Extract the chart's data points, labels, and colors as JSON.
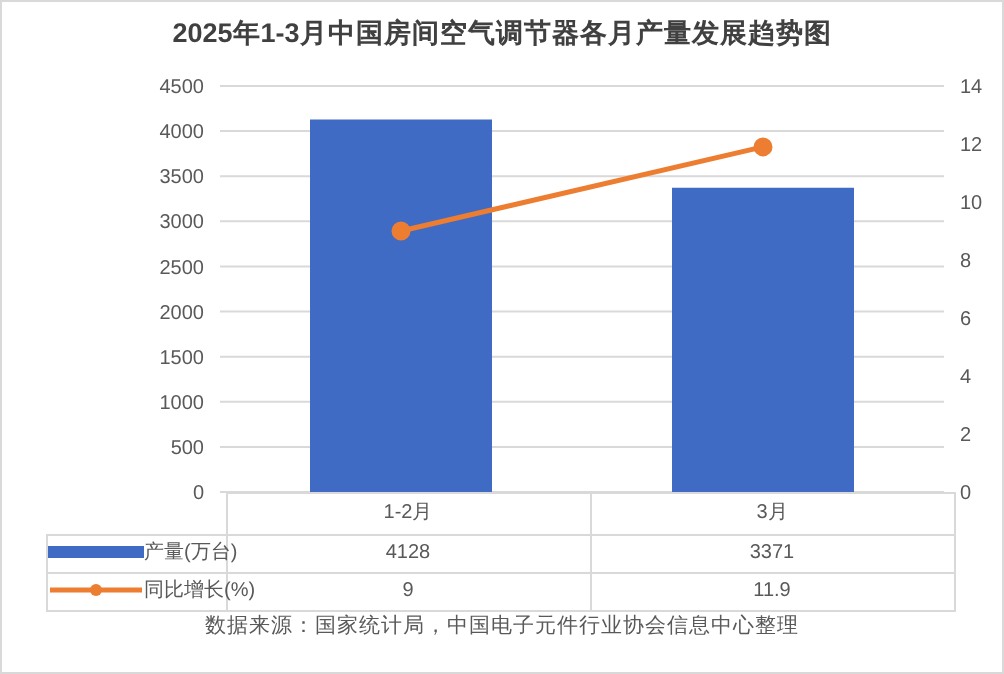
{
  "chart_data": {
    "type": "bar",
    "title": "2025年1-3月中国房间空气调节器各月产量发展趋势图",
    "categories": [
      "1-2月",
      "3月"
    ],
    "series": [
      {
        "name": "产量(万台)",
        "color": "#3f6bc4",
        "values": [
          4128,
          3371
        ]
      },
      {
        "name": "同比增长(%)",
        "type": "line",
        "axis": "y2",
        "color": "#ed7d31",
        "values": [
          9,
          11.9
        ]
      }
    ],
    "ylim": [
      0,
      4500
    ],
    "yticks": [
      0,
      500,
      1000,
      1500,
      2000,
      2500,
      3000,
      3500,
      4000,
      4500
    ],
    "y2lim": [
      0,
      14
    ],
    "y2ticks": [
      0,
      2,
      4,
      6,
      8,
      10,
      12,
      14
    ],
    "grid": "y",
    "legend": "bottom",
    "marker": "circle",
    "data_labels": true,
    "annotations": [
      "数据来源：国家统计局，中国电子元件行业协会信息中心整理"
    ]
  }
}
